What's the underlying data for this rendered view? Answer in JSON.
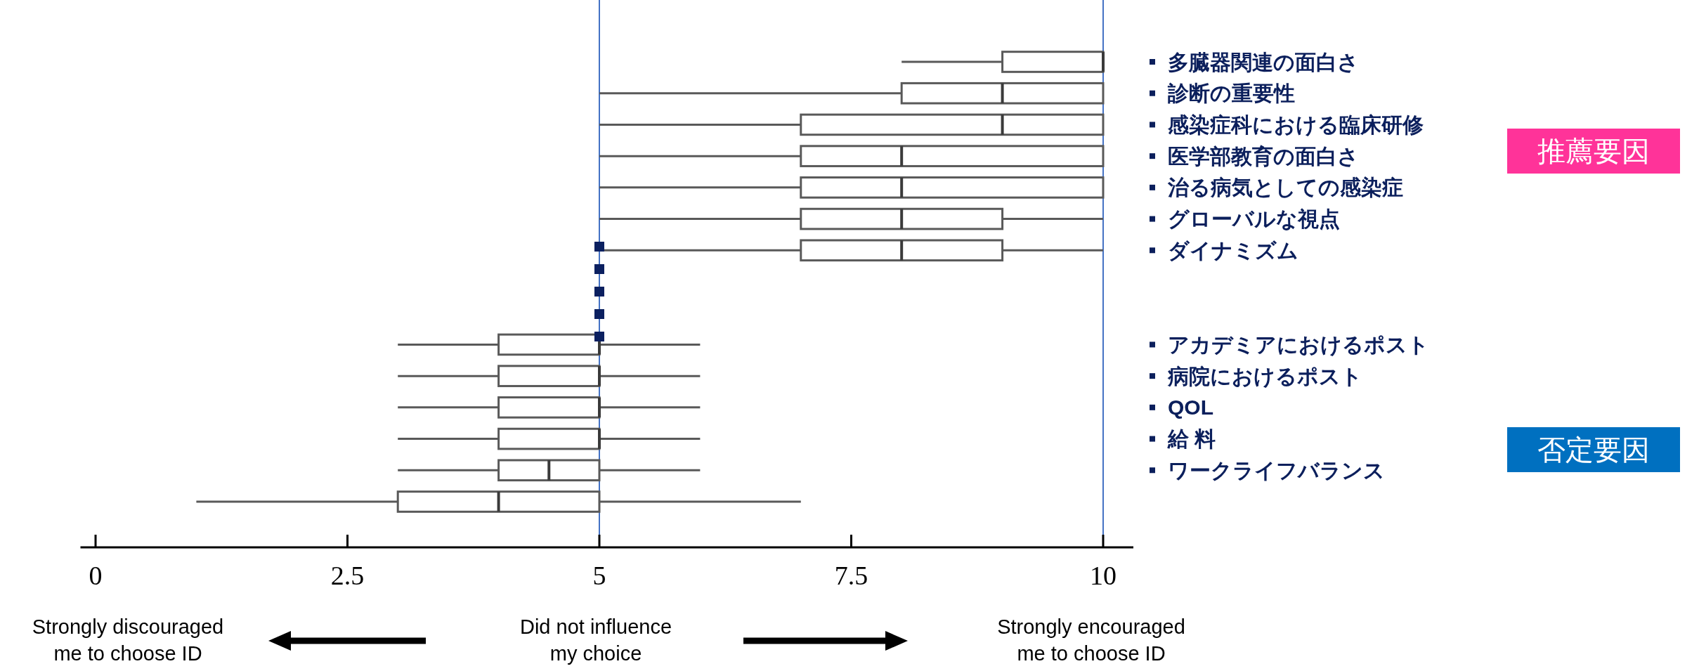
{
  "chart_data": {
    "type": "box",
    "orientation": "horizontal",
    "categories": [
      "多臓器関連の面白さ",
      "診断の重要性",
      "感染症科における臨床研修",
      "医学部教育の面白さ",
      "治る病気としての感染症",
      "グローバルな視点",
      "ダイナミズム",
      null,
      null,
      "アカデミアにおけるポスト",
      "病院におけるポスト",
      "QOL",
      "給 料",
      "ワークライフバランス",
      null
    ],
    "series": [
      {
        "color": "#595959",
        "boxes": [
          {
            "low": 8,
            "q1": 9,
            "median": 10,
            "q3": 10,
            "high": 10
          },
          {
            "low": 5,
            "q1": 8,
            "median": 9,
            "q3": 10,
            "high": 10
          },
          {
            "low": 5,
            "q1": 7,
            "median": 9,
            "q3": 10,
            "high": 10
          },
          {
            "low": 5,
            "q1": 7,
            "median": 8,
            "q3": 10,
            "high": 10
          },
          {
            "low": 5,
            "q1": 7,
            "median": 8,
            "q3": 10,
            "high": 10
          },
          {
            "low": 5,
            "q1": 7,
            "median": 8,
            "q3": 9,
            "high": 10
          },
          {
            "low": 5,
            "q1": 7,
            "median": 8,
            "q3": 9,
            "high": 10
          },
          null,
          null,
          {
            "low": 3,
            "q1": 4,
            "median": 5,
            "q3": 5,
            "high": 6
          },
          {
            "low": 3,
            "q1": 4,
            "median": 5,
            "q3": 5,
            "high": 6
          },
          {
            "low": 3,
            "q1": 4,
            "median": 5,
            "q3": 5,
            "high": 6
          },
          {
            "low": 3,
            "q1": 4,
            "median": 5,
            "q3": 5,
            "high": 6
          },
          {
            "low": 3,
            "q1": 4,
            "median": 4.5,
            "q3": 5,
            "high": 6
          },
          {
            "low": 1,
            "q1": 3,
            "median": 4,
            "q3": 5,
            "high": 7
          }
        ]
      }
    ],
    "xlim": [
      -0.15,
      10.3
    ],
    "xticks": [
      0,
      2.5,
      5,
      7.5,
      10
    ],
    "ref_lines": [
      {
        "axis": "x",
        "value": 5,
        "color": "#4472c4"
      },
      {
        "axis": "x",
        "value": 10,
        "color": "#4472c4"
      }
    ],
    "annotations": [
      "推薦要因",
      "否定要因",
      "Strongly discouraged\nme to choose ID",
      "Did not influence\nmy choice",
      "Strongly encouraged\nme to choose ID"
    ]
  }
}
